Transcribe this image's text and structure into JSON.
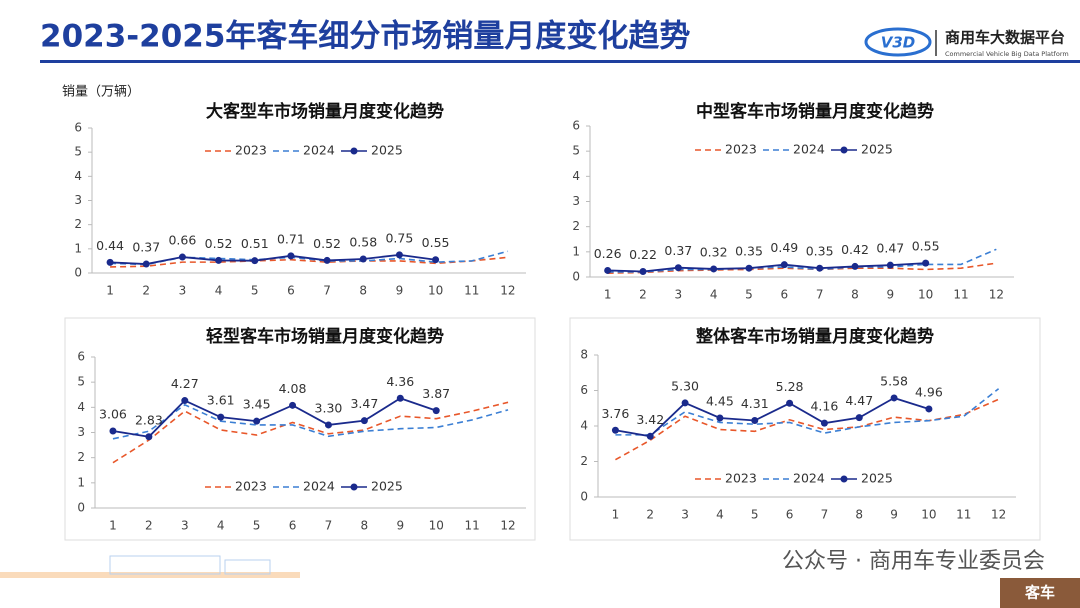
{
  "header": {
    "title": "2023-2025年客车细分市场销量月度变化趋势",
    "logo_mark": "V3D",
    "logo_title": "商用车大数据平台",
    "logo_subtitle": "Commercial Vehicle Big Data Platform"
  },
  "unit_label": "销量（万辆）",
  "footer": {
    "watermark": "公众号 · 商用车专业委员会",
    "tag": "客车"
  },
  "chart_data": [
    {
      "type": "line",
      "title": "大客型车市场销量月度变化趋势",
      "categories": [
        "1",
        "2",
        "3",
        "4",
        "5",
        "6",
        "7",
        "8",
        "9",
        "10",
        "11",
        "12"
      ],
      "ylim": [
        0,
        6
      ],
      "yticks": [
        0,
        1,
        2,
        3,
        4,
        5,
        6
      ],
      "grid": false,
      "legend": "top",
      "series": [
        {
          "name": "2023",
          "color": "#e8572a",
          "dash": true,
          "values": [
            0.25,
            0.28,
            0.45,
            0.45,
            0.5,
            0.55,
            0.45,
            0.5,
            0.5,
            0.4,
            0.5,
            0.65
          ]
        },
        {
          "name": "2024",
          "color": "#3b7fd4",
          "dash": true,
          "values": [
            0.4,
            0.35,
            0.65,
            0.6,
            0.55,
            0.65,
            0.5,
            0.5,
            0.6,
            0.45,
            0.5,
            0.9
          ]
        },
        {
          "name": "2025",
          "color": "#1a2a8c",
          "dash": false,
          "markers": true,
          "values": [
            0.44,
            0.37,
            0.66,
            0.52,
            0.51,
            0.71,
            0.52,
            0.58,
            0.75,
            0.55,
            null,
            null
          ],
          "value_labels": [
            "0.44",
            "0.37",
            "0.66",
            "0.52",
            "0.51",
            "0.71",
            "0.52",
            "0.58",
            "0.75",
            "0.55",
            null,
            null
          ]
        }
      ]
    },
    {
      "type": "line",
      "title": "中型客车市场销量月度变化趋势",
      "categories": [
        "1",
        "2",
        "3",
        "4",
        "5",
        "6",
        "7",
        "8",
        "9",
        "10",
        "11",
        "12"
      ],
      "ylim": [
        0,
        6
      ],
      "yticks": [
        0,
        1,
        2,
        3,
        4,
        5,
        6
      ],
      "grid": false,
      "legend": "top",
      "series": [
        {
          "name": "2023",
          "color": "#e8572a",
          "dash": true,
          "values": [
            0.15,
            0.18,
            0.25,
            0.28,
            0.3,
            0.35,
            0.3,
            0.35,
            0.35,
            0.3,
            0.35,
            0.55
          ]
        },
        {
          "name": "2024",
          "color": "#3b7fd4",
          "dash": true,
          "values": [
            0.2,
            0.2,
            0.3,
            0.3,
            0.35,
            0.4,
            0.3,
            0.4,
            0.4,
            0.5,
            0.5,
            1.1
          ]
        },
        {
          "name": "2025",
          "color": "#1a2a8c",
          "dash": false,
          "markers": true,
          "values": [
            0.26,
            0.22,
            0.37,
            0.32,
            0.35,
            0.49,
            0.35,
            0.42,
            0.47,
            0.55,
            null,
            null
          ],
          "value_labels": [
            "0.26",
            "0.22",
            "0.37",
            "0.32",
            "0.35",
            "0.49",
            "0.35",
            "0.42",
            "0.47",
            "0.55",
            null,
            null
          ]
        }
      ]
    },
    {
      "type": "line",
      "title": "轻型客车市场销量月度变化趋势",
      "categories": [
        "1",
        "2",
        "3",
        "4",
        "5",
        "6",
        "7",
        "8",
        "9",
        "10",
        "11",
        "12"
      ],
      "ylim": [
        0,
        6
      ],
      "yticks": [
        0,
        1,
        2,
        3,
        4,
        5,
        6
      ],
      "grid": false,
      "legend": "bottom",
      "series": [
        {
          "name": "2023",
          "color": "#e8572a",
          "dash": true,
          "values": [
            1.8,
            2.7,
            3.85,
            3.1,
            2.9,
            3.4,
            2.95,
            3.1,
            3.65,
            3.55,
            3.85,
            4.2
          ]
        },
        {
          "name": "2024",
          "color": "#3b7fd4",
          "dash": true,
          "values": [
            2.75,
            3.05,
            4.1,
            3.45,
            3.3,
            3.3,
            2.85,
            3.05,
            3.15,
            3.2,
            3.5,
            3.9
          ]
        },
        {
          "name": "2025",
          "color": "#1a2a8c",
          "dash": false,
          "markers": true,
          "values": [
            3.06,
            2.83,
            4.27,
            3.61,
            3.45,
            4.08,
            3.3,
            3.47,
            4.36,
            3.87,
            null,
            null
          ],
          "value_labels": [
            "3.06",
            "2.83",
            "4.27",
            "3.61",
            "3.45",
            "4.08",
            "3.30",
            "3.47",
            "4.36",
            "3.87",
            null,
            null
          ]
        }
      ]
    },
    {
      "type": "line",
      "title": "整体客车市场销量月度变化趋势",
      "categories": [
        "1",
        "2",
        "3",
        "4",
        "5",
        "6",
        "7",
        "8",
        "9",
        "10",
        "11",
        "12"
      ],
      "ylim": [
        0,
        8
      ],
      "yticks": [
        0,
        2,
        4,
        6,
        8
      ],
      "grid": false,
      "legend": "bottom",
      "series": [
        {
          "name": "2023",
          "color": "#e8572a",
          "dash": true,
          "values": [
            2.1,
            3.2,
            4.55,
            3.8,
            3.7,
            4.35,
            3.8,
            3.95,
            4.5,
            4.3,
            4.65,
            5.5
          ]
        },
        {
          "name": "2024",
          "color": "#3b7fd4",
          "dash": true,
          "values": [
            3.5,
            3.5,
            4.8,
            4.2,
            4.1,
            4.2,
            3.6,
            3.95,
            4.2,
            4.3,
            4.55,
            6.1
          ]
        },
        {
          "name": "2025",
          "color": "#1a2a8c",
          "dash": false,
          "markers": true,
          "values": [
            3.76,
            3.42,
            5.3,
            4.45,
            4.31,
            5.28,
            4.16,
            4.47,
            5.58,
            4.96,
            null,
            null
          ],
          "value_labels": [
            "3.76",
            "3.42",
            "5.30",
            "4.45",
            "4.31",
            "5.28",
            "4.16",
            "4.47",
            "5.58",
            "4.96",
            null,
            null
          ]
        }
      ]
    }
  ]
}
